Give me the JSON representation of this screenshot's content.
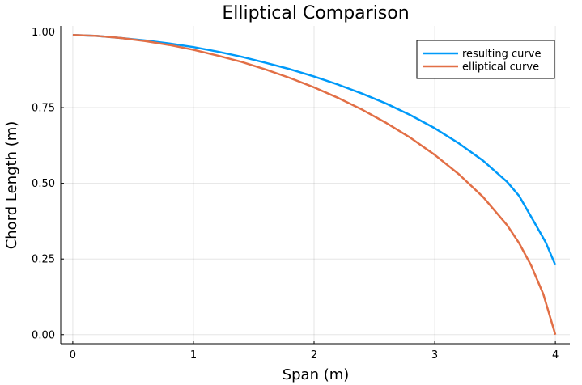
{
  "chart_data": {
    "type": "line",
    "title": "Elliptical Comparison",
    "xlabel": "Span (m)",
    "ylabel": "Chord Length (m)",
    "xlim": [
      -0.1,
      4.12
    ],
    "ylim": [
      -0.03,
      1.02
    ],
    "xticks": [
      0,
      1,
      2,
      3,
      4
    ],
    "xtick_labels": [
      "0",
      "1",
      "2",
      "3",
      "4"
    ],
    "yticks": [
      0,
      0.25,
      0.5,
      0.75,
      1.0
    ],
    "ytick_labels": [
      "0.00",
      "0.25",
      "0.50",
      "0.75",
      "1.00"
    ],
    "grid": true,
    "legend_position": "top-right",
    "series": [
      {
        "name": "resulting curve",
        "color": "#009af9",
        "x": [
          0,
          0.2,
          0.4,
          0.6,
          0.8,
          1.0,
          1.2,
          1.4,
          1.6,
          1.8,
          2.0,
          2.2,
          2.4,
          2.6,
          2.8,
          3.0,
          3.2,
          3.4,
          3.6,
          3.7,
          3.82,
          3.92,
          4.0
        ],
        "y": [
          0.99,
          0.987,
          0.98,
          0.972,
          0.962,
          0.95,
          0.935,
          0.918,
          0.898,
          0.877,
          0.853,
          0.826,
          0.796,
          0.763,
          0.725,
          0.682,
          0.632,
          0.575,
          0.505,
          0.458,
          0.375,
          0.305,
          0.23
        ]
      },
      {
        "name": "elliptical curve",
        "color": "#e26f46",
        "x": [
          0,
          0.2,
          0.4,
          0.6,
          0.8,
          1.0,
          1.2,
          1.4,
          1.6,
          1.8,
          2.0,
          2.2,
          2.4,
          2.6,
          2.8,
          3.0,
          3.2,
          3.4,
          3.6,
          3.7,
          3.8,
          3.9,
          4.0
        ],
        "y": [
          0.99,
          0.987,
          0.98,
          0.97,
          0.957,
          0.941,
          0.922,
          0.901,
          0.876,
          0.848,
          0.817,
          0.782,
          0.743,
          0.699,
          0.65,
          0.594,
          0.53,
          0.455,
          0.362,
          0.302,
          0.228,
          0.134,
          0.0
        ]
      }
    ]
  }
}
